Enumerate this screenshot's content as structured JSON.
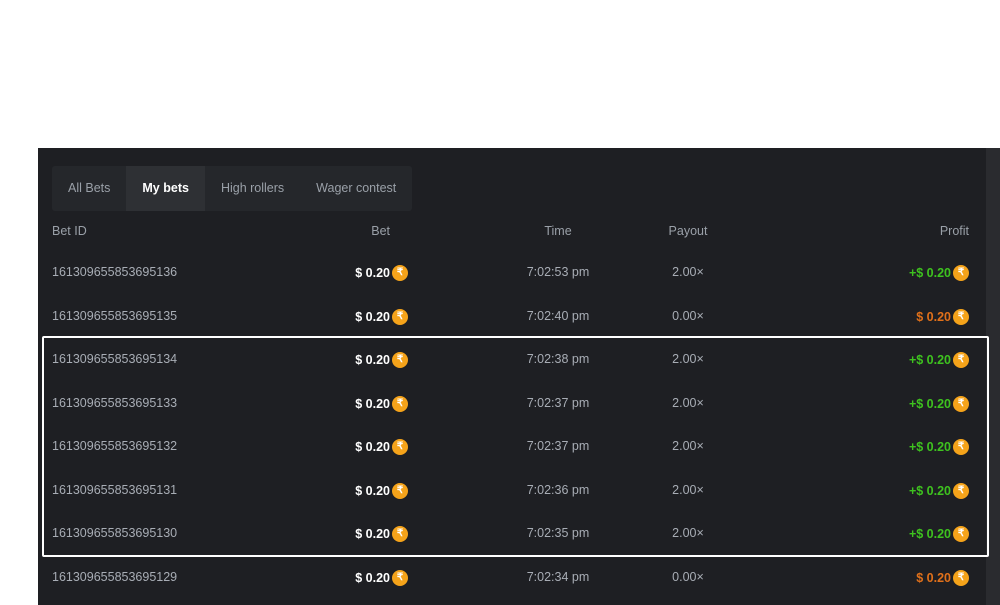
{
  "tabs": [
    {
      "label": "All Bets"
    },
    {
      "label": "My bets",
      "active": true
    },
    {
      "label": "High rollers"
    },
    {
      "label": "Wager contest"
    }
  ],
  "columns": {
    "bet_id": "Bet ID",
    "bet": "Bet",
    "time": "Time",
    "payout": "Payout",
    "profit": "Profit"
  },
  "coin_symbol": "₹",
  "colors": {
    "win": "#3ec21f",
    "loss": "#e0701a",
    "coin": "#f5a31a",
    "highlight": "#ffffff"
  },
  "rows": [
    {
      "id": "161309655853695136",
      "bet": "$ 0.20",
      "time": "7:02:53 pm",
      "payout": "2.00×",
      "profit": "+$ 0.20",
      "result": "win"
    },
    {
      "id": "161309655853695135",
      "bet": "$ 0.20",
      "time": "7:02:40 pm",
      "payout": "0.00×",
      "profit": "$ 0.20",
      "result": "loss"
    },
    {
      "id": "161309655853695134",
      "bet": "$ 0.20",
      "time": "7:02:38 pm",
      "payout": "2.00×",
      "profit": "+$ 0.20",
      "result": "win"
    },
    {
      "id": "161309655853695133",
      "bet": "$ 0.20",
      "time": "7:02:37 pm",
      "payout": "2.00×",
      "profit": "+$ 0.20",
      "result": "win"
    },
    {
      "id": "161309655853695132",
      "bet": "$ 0.20",
      "time": "7:02:37 pm",
      "payout": "2.00×",
      "profit": "+$ 0.20",
      "result": "win"
    },
    {
      "id": "161309655853695131",
      "bet": "$ 0.20",
      "time": "7:02:36 pm",
      "payout": "2.00×",
      "profit": "+$ 0.20",
      "result": "win"
    },
    {
      "id": "161309655853695130",
      "bet": "$ 0.20",
      "time": "7:02:35 pm",
      "payout": "2.00×",
      "profit": "+$ 0.20",
      "result": "win"
    },
    {
      "id": "161309655853695129",
      "bet": "$ 0.20",
      "time": "7:02:34 pm",
      "payout": "0.00×",
      "profit": "$ 0.20",
      "result": "loss"
    }
  ]
}
